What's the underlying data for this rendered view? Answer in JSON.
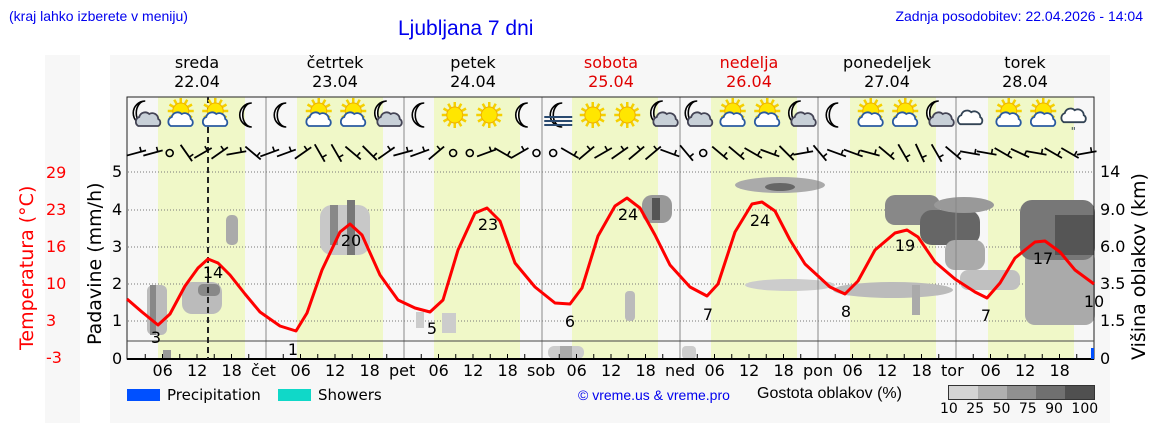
{
  "header": {
    "left_note": "(kraj lahko izberete v meniju)",
    "title": "Ljubljana 7 dni",
    "last_update": "Zadnja posodobitev: 22.04.2026 - 14:04"
  },
  "days": [
    {
      "name": "sreda",
      "date": "22.04",
      "weekend": false,
      "abbr": ""
    },
    {
      "name": "četrtek",
      "date": "23.04",
      "weekend": false,
      "abbr": "čet"
    },
    {
      "name": "petek",
      "date": "24.04",
      "weekend": false,
      "abbr": "pet"
    },
    {
      "name": "sobota",
      "date": "25.04",
      "weekend": true,
      "abbr": "sob"
    },
    {
      "name": "nedelja",
      "date": "26.04",
      "weekend": true,
      "abbr": "ned"
    },
    {
      "name": "ponedeljek",
      "date": "27.04",
      "weekend": false,
      "abbr": "pon"
    },
    {
      "name": "torek",
      "date": "28.04",
      "weekend": false,
      "abbr": "tor"
    }
  ],
  "axes": {
    "temp_label": "Temperatura (°C)",
    "temp_ticks": [
      "29",
      "23",
      "16",
      "10",
      "3",
      "-3"
    ],
    "precip_label": "Padavine (mm/h)",
    "precip_ticks": [
      "5",
      "4",
      "3",
      "2",
      "1",
      "0"
    ],
    "cloud_label": "Višina oblakov (km)",
    "cloud_ticks": [
      "14",
      "9.0",
      "6.0",
      "3.5",
      "1.5",
      "0"
    ],
    "hour_ticks": [
      "06",
      "12",
      "18"
    ]
  },
  "legend": {
    "precipitation": "Precipitation",
    "showers": "Showers",
    "precip_color": "#0050ff",
    "showers_color": "#10d8c8",
    "copyright": "© vreme.us & vreme.pro",
    "cloud_density_label": "Gostota oblakov (%)",
    "cloud_density_ticks": [
      "10",
      "25",
      "50",
      "75",
      "90",
      "100"
    ],
    "cloud_density_colors": [
      "#d4d4d4",
      "#b0b0b0",
      "#909090",
      "#707070",
      "#505050"
    ]
  },
  "colors": {
    "temperature_line": "#ff0000",
    "daylight_band": "#f0f8c8",
    "night_band": "#f7f7f7",
    "link_blue": "#0000ee"
  },
  "chart_data": {
    "type": "line",
    "title": "Ljubljana 7 dni",
    "xlabel": "",
    "ylabel": "Temperatura (°C)",
    "y2label": "Padavine (mm/h)",
    "y3label": "Višina oblakov (km)",
    "ylim": [
      -3,
      29
    ],
    "y2lim": [
      0,
      5
    ],
    "grid": true,
    "legend_position": "bottom",
    "temperature_extremes": [
      {
        "day": "22.04",
        "min": 3,
        "max": 14
      },
      {
        "day": "23.04",
        "min": 1,
        "max": 20
      },
      {
        "day": "24.04",
        "min": 5,
        "max": 23
      },
      {
        "day": "25.04",
        "min": 6,
        "max": 24
      },
      {
        "day": "26.04",
        "min": 7,
        "max": 24
      },
      {
        "day": "27.04",
        "min": 8,
        "max": 19
      },
      {
        "day": "28.04",
        "min": 7,
        "max": 17
      }
    ],
    "end_value": 10,
    "series": [
      {
        "name": "Temperatura",
        "x_hours": [
          0,
          6,
          12,
          18,
          24,
          30,
          36,
          42,
          48,
          54,
          60,
          66,
          72,
          78,
          84,
          90,
          96,
          102,
          108,
          114,
          120,
          126,
          132,
          138,
          144,
          150,
          156,
          162,
          168
        ],
        "values": [
          10,
          3,
          13,
          11,
          4,
          1,
          18,
          12,
          5,
          5,
          22,
          12,
          6,
          6,
          24,
          12,
          7,
          7,
          24,
          12,
          7,
          8,
          18,
          12,
          7,
          7,
          16,
          12,
          10
        ]
      }
    ],
    "current_time_marker": "22.04 14:00",
    "weather_icons": [
      "moon-cloud",
      "sun-cloud",
      "sun-cloud",
      "moon",
      "moon",
      "sun-cloud",
      "sun-cloud",
      "moon-cloud",
      "moon",
      "sun",
      "sun",
      "moon",
      "fog-moon",
      "sun",
      "sun",
      "moon-cloud",
      "moon-cloud",
      "sun-cloud",
      "sun-cloud",
      "moon-cloud",
      "moon",
      "sun-cloud",
      "sun-cloud",
      "moon-cloud",
      "cloud",
      "sun-cloud",
      "sun-cloud",
      "cloud-rain"
    ]
  }
}
